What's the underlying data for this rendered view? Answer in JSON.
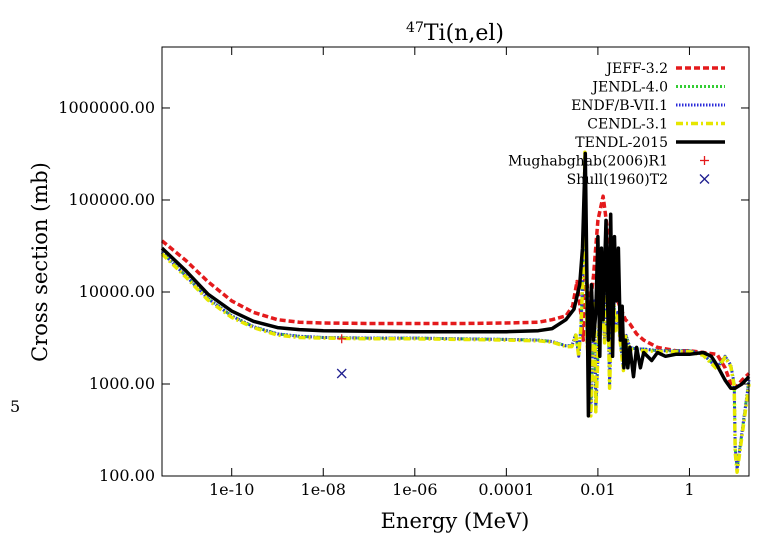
{
  "page_margin_label": "5",
  "chart_data": {
    "type": "line",
    "title_sup": "47",
    "title": "Ti(n,el)",
    "xlabel": "Energy (MeV)",
    "ylabel": "Cross section (mb)",
    "xscale": "log",
    "yscale": "log",
    "xlim": [
      3e-12,
      20
    ],
    "ylim": [
      100,
      4600000
    ],
    "xticks": [
      {
        "value": 1e-10,
        "label": "1e-10"
      },
      {
        "value": 1e-08,
        "label": "1e-08"
      },
      {
        "value": 1e-06,
        "label": "1e-06"
      },
      {
        "value": 0.0001,
        "label": "0.0001"
      },
      {
        "value": 0.01,
        "label": "0.01"
      },
      {
        "value": 1,
        "label": "1"
      }
    ],
    "yticks": [
      {
        "value": 100,
        "label": "100.00"
      },
      {
        "value": 1000,
        "label": "1000.00"
      },
      {
        "value": 10000,
        "label": "10000.00"
      },
      {
        "value": 100000,
        "label": "100000.00"
      },
      {
        "value": 1000000,
        "label": "1000000.00"
      }
    ],
    "legend_position": "top-right",
    "grid": false,
    "series": [
      {
        "name": "JEFF-3.2",
        "kind": "line",
        "color": "#e41a1c",
        "dash": "6,3",
        "width": 3.5,
        "x": [
          3e-12,
          1e-11,
          3e-11,
          1e-10,
          3e-10,
          1e-09,
          3e-09,
          1e-08,
          1e-07,
          1e-06,
          1e-05,
          0.0001,
          0.0005,
          0.001,
          0.002,
          0.0028,
          0.0035,
          0.0042,
          0.0048,
          0.0052,
          0.0058,
          0.0065,
          0.008,
          0.01,
          0.013,
          0.016,
          0.02,
          0.025,
          0.03,
          0.04,
          0.05,
          0.07,
          0.1,
          0.2,
          0.5,
          1,
          2,
          4,
          6,
          8,
          10,
          14,
          20
        ],
        "y": [
          36000,
          22000,
          13000,
          8000,
          6000,
          5000,
          4700,
          4600,
          4550,
          4550,
          4550,
          4600,
          4700,
          5000,
          5500,
          7000,
          13000,
          6000,
          3000,
          20000,
          12000,
          6000,
          15000,
          60000,
          110000,
          50000,
          15000,
          9000,
          7000,
          5000,
          4500,
          3500,
          3000,
          2500,
          2300,
          2300,
          2200,
          2100,
          1500,
          1000,
          900,
          1100,
          1300
        ]
      },
      {
        "name": "JENDL-4.0",
        "kind": "line",
        "color": "#33cc33",
        "dash": "2,2",
        "width": 3,
        "x": [
          3e-12,
          1e-11,
          3e-11,
          1e-10,
          3e-10,
          1e-09,
          3e-09,
          1e-08,
          1e-07,
          1e-06,
          1e-05,
          0.0001,
          0.0005,
          0.001,
          0.002,
          0.0027,
          0.0033,
          0.0038,
          0.0043,
          0.0048,
          0.0052,
          0.0058,
          0.0065,
          0.007,
          0.0085,
          0.009,
          0.0105,
          0.012,
          0.014,
          0.016,
          0.018,
          0.021,
          0.024,
          0.027,
          0.032,
          0.036,
          0.04,
          0.05,
          0.07,
          0.1,
          0.2,
          0.5,
          1,
          2,
          4,
          6,
          8,
          9.5,
          10,
          11,
          20
        ],
        "y": [
          27000,
          15000,
          8500,
          5500,
          4200,
          3500,
          3300,
          3200,
          3150,
          3150,
          3100,
          3050,
          3000,
          2900,
          2600,
          2600,
          3500,
          2000,
          4500,
          20000,
          300000,
          3000,
          1500,
          500,
          8000,
          500,
          4000,
          12000,
          3000,
          20000,
          1000,
          16000,
          4000,
          6000,
          2500,
          1500,
          3500,
          2500,
          2400,
          2400,
          2300,
          2300,
          2300,
          2100,
          1500,
          2000,
          1600,
          1000,
          200,
          120,
          1100
        ]
      },
      {
        "name": "ENDF/B-VII.1",
        "kind": "line",
        "color": "#2b2bd9",
        "dash": "1.5,1.5",
        "width": 3,
        "x": [
          3e-12,
          1e-11,
          3e-11,
          1e-10,
          3e-10,
          1e-09,
          3e-09,
          1e-08,
          1e-07,
          1e-06,
          1e-05,
          0.0001,
          0.0005,
          0.001,
          0.002,
          0.0027,
          0.0033,
          0.0038,
          0.0043,
          0.0048,
          0.0052,
          0.0058,
          0.0065,
          0.007,
          0.0085,
          0.009,
          0.0105,
          0.012,
          0.014,
          0.016,
          0.018,
          0.021,
          0.024,
          0.027,
          0.032,
          0.036,
          0.04,
          0.05,
          0.07,
          0.1,
          0.2,
          0.5,
          1,
          2,
          4,
          6,
          8,
          9.5,
          10,
          11,
          20
        ],
        "y": [
          27000,
          15000,
          8500,
          5500,
          4200,
          3500,
          3300,
          3200,
          3150,
          3150,
          3100,
          3050,
          3000,
          2900,
          2600,
          2600,
          3500,
          2000,
          4500,
          20000,
          300000,
          3000,
          1500,
          500,
          8000,
          500,
          4000,
          12000,
          3000,
          20000,
          1000,
          16000,
          4000,
          6000,
          2500,
          1500,
          3500,
          2500,
          2400,
          2400,
          2300,
          2300,
          2300,
          2100,
          1500,
          2000,
          1600,
          1000,
          200,
          120,
          1100
        ]
      },
      {
        "name": "CENDL-3.1",
        "kind": "line",
        "color": "#e6e600",
        "dash": "7,3,2,3",
        "width": 3.5,
        "x": [
          3e-12,
          1e-11,
          3e-11,
          1e-10,
          3e-10,
          1e-09,
          3e-09,
          1e-08,
          1e-07,
          1e-06,
          1e-05,
          0.0001,
          0.0005,
          0.001,
          0.002,
          0.0027,
          0.0033,
          0.0038,
          0.0043,
          0.0048,
          0.0052,
          0.0058,
          0.0065,
          0.007,
          0.0085,
          0.009,
          0.0105,
          0.012,
          0.014,
          0.016,
          0.018,
          0.021,
          0.024,
          0.027,
          0.032,
          0.036,
          0.04,
          0.05,
          0.07,
          0.1,
          0.2,
          0.5,
          1,
          2,
          4,
          6,
          8,
          9.5,
          10,
          11,
          20
        ],
        "y": [
          26000,
          14500,
          8200,
          5300,
          4100,
          3400,
          3200,
          3150,
          3100,
          3100,
          3050,
          3000,
          2950,
          2850,
          2550,
          2550,
          3400,
          2000,
          4400,
          20000,
          330000,
          2800,
          1400,
          450,
          7500,
          500,
          3800,
          11000,
          2800,
          18000,
          900,
          15000,
          3800,
          5500,
          2400,
          1400,
          3300,
          2400,
          2300,
          2300,
          2250,
          2250,
          2250,
          2050,
          1450,
          1950,
          1550,
          950,
          180,
          110,
          1000
        ]
      },
      {
        "name": "TENDL-2015",
        "kind": "line",
        "color": "#000000",
        "dash": "",
        "width": 3.5,
        "x": [
          3e-12,
          1e-11,
          3e-11,
          1e-10,
          3e-10,
          1e-09,
          3e-09,
          1e-08,
          1e-07,
          1e-06,
          1e-05,
          0.0001,
          0.0005,
          0.001,
          0.002,
          0.003,
          0.004,
          0.0046,
          0.005,
          0.0053,
          0.0058,
          0.0062,
          0.0068,
          0.0072,
          0.008,
          0.009,
          0.01,
          0.011,
          0.012,
          0.013,
          0.015,
          0.017,
          0.019,
          0.021,
          0.023,
          0.025,
          0.028,
          0.031,
          0.034,
          0.037,
          0.04,
          0.045,
          0.05,
          0.06,
          0.07,
          0.085,
          0.1,
          0.15,
          0.2,
          0.3,
          0.5,
          1,
          2,
          3,
          4,
          6,
          8,
          10,
          14,
          20
        ],
        "y": [
          30000,
          17000,
          9500,
          6200,
          4800,
          4100,
          3900,
          3800,
          3750,
          3700,
          3700,
          3700,
          3800,
          4000,
          5000,
          6500,
          12000,
          30000,
          120000,
          320000,
          10000,
          450,
          5000,
          12000,
          3000,
          6000,
          40000,
          2000,
          30000,
          5000,
          60000,
          3000,
          70000,
          2000,
          40000,
          8000,
          30000,
          3000,
          7000,
          1500,
          3000,
          1500,
          2500,
          1200,
          2500,
          1500,
          2200,
          1800,
          2200,
          2000,
          2100,
          2100,
          2200,
          2000,
          1600,
          1100,
          900,
          900,
          1000,
          1200
        ]
      },
      {
        "name": "Mughabghab(2006)R1",
        "kind": "scatter",
        "marker": "plus",
        "color": "#e41a1c",
        "points": [
          {
            "x": 2.53e-08,
            "y": 3100
          }
        ]
      },
      {
        "name": "Shull(1960)T2",
        "kind": "scatter",
        "marker": "cross",
        "color": "#1f1f8f",
        "points": [
          {
            "x": 2.53e-08,
            "y": 1300
          }
        ]
      }
    ]
  }
}
